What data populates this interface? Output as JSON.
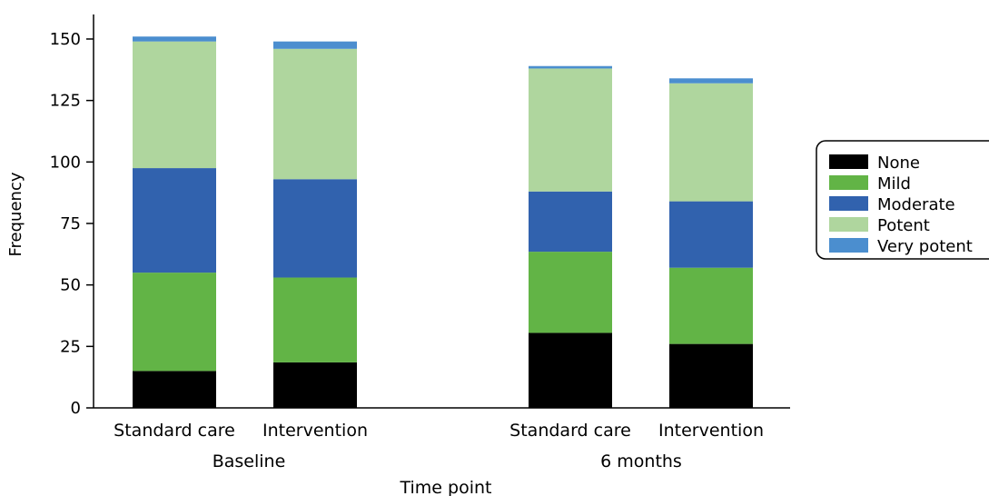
{
  "chart_data": {
    "type": "bar",
    "stacked": true,
    "xlabel": "Time point",
    "ylabel": "Frequency",
    "ylim": [
      0,
      160
    ],
    "yticks": [
      0,
      25,
      50,
      75,
      100,
      125,
      150
    ],
    "groups": [
      {
        "label": "Baseline",
        "categories": [
          "Standard care",
          "Intervention"
        ]
      },
      {
        "label": "6 months",
        "categories": [
          "Standard care",
          "Intervention"
        ]
      }
    ],
    "series": [
      {
        "name": "None",
        "color": "#000000",
        "values": [
          15,
          18.5,
          30.5,
          26
        ]
      },
      {
        "name": "Mild",
        "color": "#62b446",
        "values": [
          40,
          34.5,
          33,
          31
        ]
      },
      {
        "name": "Moderate",
        "color": "#3162ae",
        "values": [
          42.5,
          40,
          24.5,
          27
        ]
      },
      {
        "name": "Potent",
        "color": "#afd69e",
        "values": [
          51.5,
          53,
          50,
          48
        ]
      },
      {
        "name": "Very potent",
        "color": "#4b8ecf",
        "values": [
          2,
          3,
          1,
          2
        ]
      }
    ],
    "legend_position": "right",
    "grid": false
  }
}
